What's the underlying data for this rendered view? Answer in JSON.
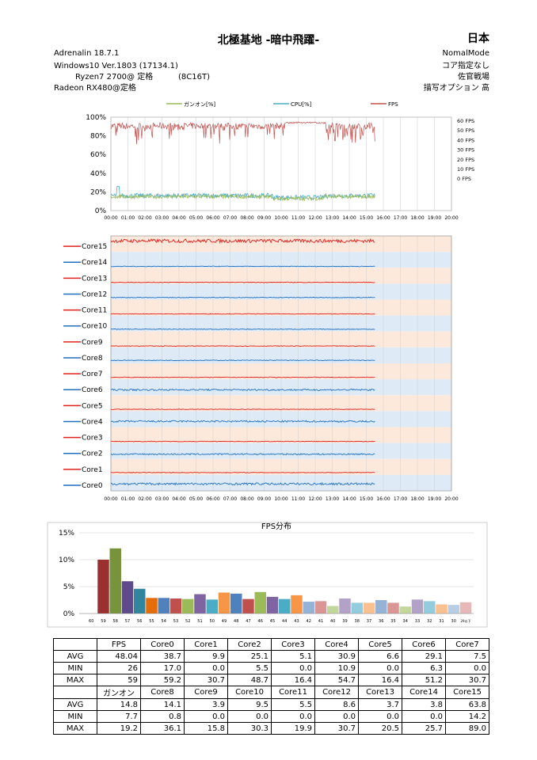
{
  "header": {
    "title": "北極基地 -暗中飛躍-",
    "region": "日本",
    "driver": "Adrenalin  18.7.1",
    "mode": "NomalMode",
    "os": "Windows10  Ver.1803 (17134.1)",
    "affinity": "コア指定なし",
    "cpu": "Ryzen7 2700@ 定格          (8C16T)",
    "class": "佐官戦場",
    "gpu": "Radeon RX480@定格",
    "draw_option": "描写オプション  高"
  },
  "colors": {
    "gunon": "#9bbb59",
    "cpu": "#4bacc6",
    "fps": "#c0504d",
    "core_red": "#e0201b",
    "core_blue": "#1f6fbf",
    "band_peach": "#fce9dc",
    "band_blue": "#deebf7"
  },
  "chart_data": [
    {
      "type": "line",
      "legend": [
        "ガンオン[%]",
        "CPU[%]",
        "FPS"
      ],
      "y_left_ticks": [
        "100%",
        "80%",
        "60%",
        "40%",
        "20%",
        "0%"
      ],
      "y_right_ticks": [
        "60 FPS",
        "50 FPS",
        "40 FPS",
        "30 FPS",
        "20 FPS",
        "10 FPS",
        "0 FPS"
      ],
      "x_ticks": [
        "00:00",
        "01:00",
        "02:00",
        "03:00",
        "04:00",
        "05:00",
        "06:00",
        "07:00",
        "08:00",
        "09:00",
        "10:00",
        "11:00",
        "12:00",
        "13:00",
        "14:00",
        "15:00",
        "16:00",
        "17:00",
        "18:00",
        "19:00",
        "20:00"
      ],
      "data_end_minute": 15.5,
      "series": [
        {
          "name": "ガンオン[%]",
          "approx_value": 14.8,
          "range": [
            7.7,
            19.2
          ]
        },
        {
          "name": "CPU[%]",
          "approx_value": 16,
          "range": [
            12,
            27
          ]
        },
        {
          "name": "FPS",
          "approx_value": 48.04,
          "range": [
            26,
            59
          ]
        }
      ]
    },
    {
      "type": "line",
      "rows": [
        "Core15",
        "Core14",
        "Core13",
        "Core12",
        "Core11",
        "Core10",
        "Core9",
        "Core8",
        "Core7",
        "Core6",
        "Core5",
        "Core4",
        "Core3",
        "Core2",
        "Core1",
        "Core0"
      ],
      "x_ticks": [
        "00:00",
        "01:00",
        "02:00",
        "03:00",
        "04:00",
        "05:00",
        "06:00",
        "07:00",
        "08:00",
        "09:00",
        "10:00",
        "11:00",
        "12:00",
        "13:00",
        "14:00",
        "15:00",
        "16:00",
        "17:00",
        "18:00",
        "19:00",
        "20:00"
      ],
      "data_end_minute": 15.5,
      "avg": {
        "Core0": 38.7,
        "Core1": 9.9,
        "Core2": 25.1,
        "Core3": 5.1,
        "Core4": 30.9,
        "Core5": 6.6,
        "Core6": 29.1,
        "Core7": 7.5,
        "Core8": 14.1,
        "Core9": 3.9,
        "Core10": 9.5,
        "Core11": 5.5,
        "Core12": 8.6,
        "Core13": 3.7,
        "Core14": 3.8,
        "Core15": 63.8
      }
    },
    {
      "type": "bar",
      "title": "FPS分布",
      "y_ticks": [
        "15%",
        "10%",
        "5%",
        "0%"
      ],
      "ylim": [
        0,
        15
      ],
      "categories": [
        "60",
        "59",
        "58",
        "57",
        "56",
        "55",
        "54",
        "53",
        "52",
        "51",
        "50",
        "49",
        "48",
        "47",
        "46",
        "45",
        "44",
        "43",
        "42",
        "41",
        "40",
        "39",
        "38",
        "37",
        "36",
        "35",
        "34",
        "33",
        "32",
        "31",
        "30",
        "29以下"
      ],
      "values": [
        0,
        10,
        12.1,
        6,
        4.6,
        2.9,
        2.9,
        2.8,
        2.7,
        3.6,
        2.6,
        3.9,
        3.7,
        2.7,
        4,
        3.1,
        2.7,
        3.4,
        2.2,
        2.3,
        1.4,
        2.8,
        2,
        2,
        2.5,
        2,
        1.3,
        2.6,
        2.3,
        1.7,
        1.6,
        2.1
      ],
      "bar_colors": [
        "#9b3030",
        "#9b3030",
        "#77933c",
        "#5f4b8b",
        "#31859c",
        "#e46c0a",
        "#4f81bd",
        "#c0504d",
        "#9bbb59",
        "#8064a2",
        "#4bacc6",
        "#f79646",
        "#4f81bd",
        "#c0504d",
        "#9bbb59",
        "#8064a2",
        "#4bacc6",
        "#f79646",
        "#95b3d7",
        "#d99694",
        "#c3d69b",
        "#b3a2c7",
        "#93cddd",
        "#fac090",
        "#95b3d7",
        "#d99694",
        "#c3d69b",
        "#b3a2c7",
        "#93cddd",
        "#fac090",
        "#b9cde5",
        "#e6b9b8"
      ]
    }
  ],
  "table": {
    "row1_headers": [
      "",
      "FPS",
      "Core0",
      "Core1",
      "Core2",
      "Core3",
      "Core4",
      "Core5",
      "Core6",
      "Core7"
    ],
    "row1": [
      [
        "AVG",
        "48.04",
        "38.7",
        "9.9",
        "25.1",
        "5.1",
        "30.9",
        "6.6",
        "29.1",
        "7.5"
      ],
      [
        "MIN",
        "26",
        "17.0",
        "0.0",
        "5.5",
        "0.0",
        "10.9",
        "0.0",
        "6.3",
        "0.0"
      ],
      [
        "MAX",
        "59",
        "59.2",
        "30.7",
        "48.7",
        "16.4",
        "54.7",
        "16.4",
        "51.2",
        "30.7"
      ]
    ],
    "row2_headers": [
      "",
      "ガンオン",
      "Core8",
      "Core9",
      "Core10",
      "Core11",
      "Core12",
      "Core13",
      "Core14",
      "Core15"
    ],
    "row2": [
      [
        "AVG",
        "14.8",
        "14.1",
        "3.9",
        "9.5",
        "5.5",
        "8.6",
        "3.7",
        "3.8",
        "63.8"
      ],
      [
        "MIN",
        "7.7",
        "0.8",
        "0.0",
        "0.0",
        "0.0",
        "0.0",
        "0.0",
        "0.0",
        "14.2"
      ],
      [
        "MAX",
        "19.2",
        "36.1",
        "15.8",
        "30.3",
        "19.9",
        "30.7",
        "20.5",
        "25.7",
        "89.0"
      ]
    ]
  }
}
